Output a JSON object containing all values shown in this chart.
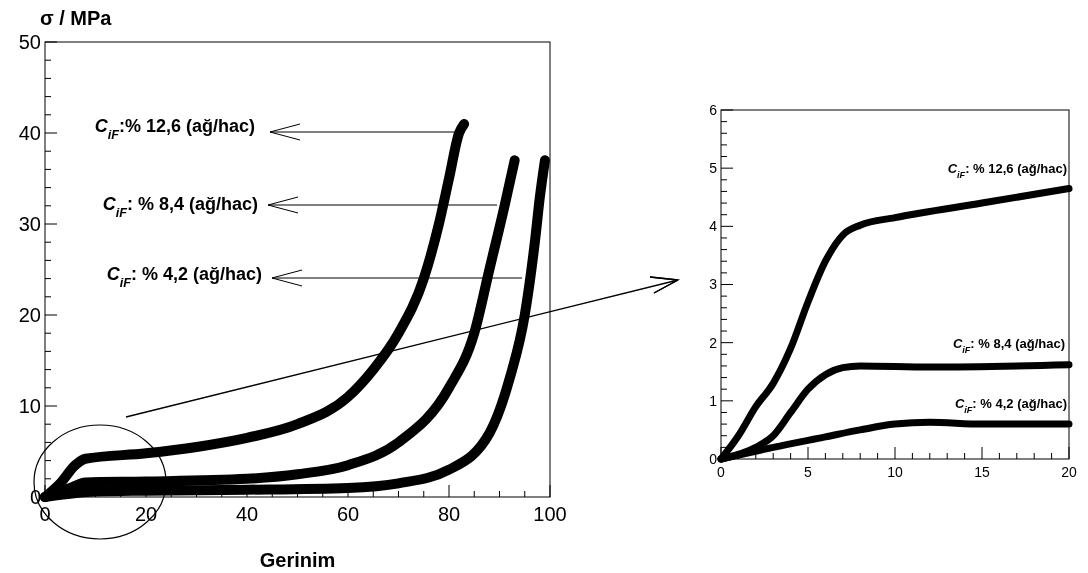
{
  "chart_data": [
    {
      "type": "line",
      "xlabel": "Gerinim",
      "ylabel": "σ / MPa",
      "xlim": [
        0,
        100
      ],
      "ylim": [
        0,
        50
      ],
      "xticks": [
        0,
        {
          "value": 5,
          "label": null
        },
        {
          "value": 10,
          "label": null
        },
        {
          "value": 15,
          "label": null
        },
        20,
        {
          "value": 25,
          "label": null
        },
        {
          "value": 30,
          "label": null
        },
        {
          "value": 35,
          "label": null
        },
        40,
        {
          "value": 45,
          "label": null
        },
        {
          "value": 50,
          "label": null
        },
        {
          "value": 55,
          "label": null
        },
        60,
        {
          "value": 65,
          "label": null
        },
        {
          "value": 70,
          "label": null
        },
        {
          "value": 75,
          "label": null
        },
        80,
        {
          "value": 85,
          "label": null
        },
        {
          "value": 90,
          "label": null
        },
        {
          "value": 95,
          "label": null
        },
        100
      ],
      "yticks": [
        0,
        {
          "value": 2,
          "label": null
        },
        {
          "value": 4,
          "label": null
        },
        {
          "value": 6,
          "label": null
        },
        {
          "value": 8,
          "label": null
        },
        10,
        {
          "value": 12,
          "label": null
        },
        {
          "value": 14,
          "label": null
        },
        {
          "value": 16,
          "label": null
        },
        {
          "value": 18,
          "label": null
        },
        20,
        {
          "value": 22,
          "label": null
        },
        {
          "value": 24,
          "label": null
        },
        {
          "value": 26,
          "label": null
        },
        {
          "value": 28,
          "label": null
        },
        30,
        {
          "value": 32,
          "label": null
        },
        {
          "value": 34,
          "label": null
        },
        {
          "value": 36,
          "label": null
        },
        {
          "value": 38,
          "label": null
        },
        40,
        {
          "value": 42,
          "label": null
        },
        {
          "value": 44,
          "label": null
        },
        {
          "value": 46,
          "label": null
        },
        {
          "value": 48,
          "label": null
        },
        50
      ],
      "grid": false,
      "legend": "left",
      "line_style": "solid",
      "series": [
        {
          "name": "C$_{iF}$:% 12,6 (ağ/hac)",
          "color": "#000000",
          "x": [
            0,
            3,
            6,
            8,
            20,
            30,
            40,
            50,
            60,
            65,
            70,
            75,
            78,
            80,
            82,
            83
          ],
          "values": [
            0,
            1.5,
            3.5,
            4.2,
            4.8,
            5.5,
            6.5,
            8,
            11,
            14,
            18,
            24,
            30,
            35,
            40,
            41
          ]
        },
        {
          "name": "C$_{iF}$: % 8,4 (ağ/hac)",
          "color": "#000000",
          "x": [
            0,
            5,
            8,
            20,
            40,
            50,
            60,
            70,
            80,
            85,
            88,
            91,
            93
          ],
          "values": [
            0,
            1,
            1.6,
            1.7,
            2,
            2.5,
            3.5,
            6,
            12,
            18,
            25,
            32,
            37
          ]
        },
        {
          "name": "C$_{iF}$: % 4,2 (ağ/hac)",
          "color": "#000000",
          "x": [
            0,
            10,
            20,
            40,
            60,
            70,
            80,
            88,
            92,
            95,
            97,
            98,
            99
          ],
          "values": [
            0,
            0.6,
            0.7,
            0.8,
            1,
            1.5,
            3,
            7,
            13,
            20,
            28,
            33,
            37
          ]
        }
      ]
    },
    {
      "type": "line",
      "xlim": [
        0,
        20
      ],
      "ylim": [
        0,
        6
      ],
      "xticks": [
        0,
        {
          "value": 1,
          "label": null
        },
        {
          "value": 2,
          "label": null
        },
        {
          "value": 3,
          "label": null
        },
        {
          "value": 4,
          "label": null
        },
        5,
        {
          "value": 6,
          "label": null
        },
        {
          "value": 7,
          "label": null
        },
        {
          "value": 8,
          "label": null
        },
        {
          "value": 9,
          "label": null
        },
        10,
        {
          "value": 11,
          "label": null
        },
        {
          "value": 12,
          "label": null
        },
        {
          "value": 13,
          "label": null
        },
        {
          "value": 14,
          "label": null
        },
        15,
        {
          "value": 16,
          "label": null
        },
        {
          "value": 17,
          "label": null
        },
        {
          "value": 18,
          "label": null
        },
        {
          "value": 19,
          "label": null
        },
        20
      ],
      "yticks": [
        0,
        {
          "value": 0.2,
          "label": null
        },
        {
          "value": 0.4,
          "label": null
        },
        {
          "value": 0.6,
          "label": null
        },
        {
          "value": 0.8,
          "label": null
        },
        1,
        {
          "value": 1.2,
          "label": null
        },
        {
          "value": 1.4,
          "label": null
        },
        {
          "value": 1.6,
          "label": null
        },
        {
          "value": 1.8,
          "label": null
        },
        2,
        {
          "value": 2.2,
          "label": null
        },
        {
          "value": 2.4,
          "label": null
        },
        {
          "value": 2.6,
          "label": null
        },
        {
          "value": 2.8,
          "label": null
        },
        3,
        {
          "value": 3.2,
          "label": null
        },
        {
          "value": 3.4,
          "label": null
        },
        {
          "value": 3.6,
          "label": null
        },
        {
          "value": 3.8,
          "label": null
        },
        4,
        {
          "value": 4.2,
          "label": null
        },
        {
          "value": 4.4,
          "label": null
        },
        {
          "value": 4.6,
          "label": null
        },
        {
          "value": 4.8,
          "label": null
        },
        5,
        {
          "value": 5.2,
          "label": null
        },
        {
          "value": 5.4,
          "label": null
        },
        {
          "value": 5.6,
          "label": null
        },
        {
          "value": 5.8,
          "label": null
        },
        6
      ],
      "grid": false,
      "legend": "right",
      "line_style": "solid",
      "series": [
        {
          "name": "C$_{iF}$: % 12,6 (ağ/hac)",
          "color": "#000000",
          "x": [
            0,
            1,
            2,
            3,
            4,
            5,
            6,
            7,
            8,
            10,
            15,
            20
          ],
          "values": [
            0,
            0.4,
            0.9,
            1.3,
            1.9,
            2.7,
            3.4,
            3.85,
            4.02,
            4.15,
            4.4,
            4.65
          ]
        },
        {
          "name": "C$_{iF}$: % 8,4 (ağ/hac)",
          "color": "#000000",
          "x": [
            0,
            2,
            3,
            4,
            5,
            6,
            7,
            8,
            12,
            20
          ],
          "values": [
            0,
            0.2,
            0.4,
            0.8,
            1.2,
            1.45,
            1.57,
            1.6,
            1.58,
            1.62
          ]
        },
        {
          "name": "C$_{iF}$: % 4,2 (ağ/hac)",
          "color": "#000000",
          "x": [
            0,
            3,
            6,
            8,
            10,
            12,
            15,
            20
          ],
          "values": [
            0,
            0.2,
            0.38,
            0.5,
            0.6,
            0.63,
            0.6,
            0.6
          ]
        }
      ]
    }
  ]
}
